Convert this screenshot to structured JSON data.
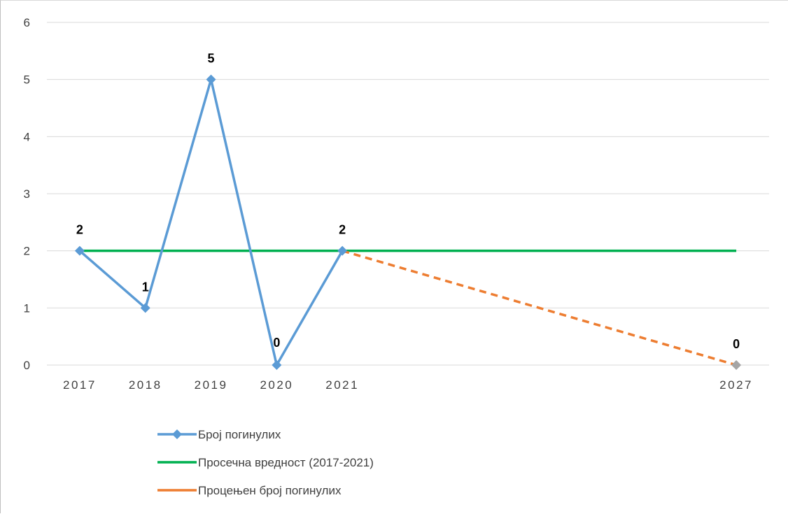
{
  "chart_data": {
    "type": "line",
    "title": "",
    "xlabel": "",
    "ylabel": "",
    "ylim": [
      0,
      6
    ],
    "y_ticks": [
      "0",
      "1",
      "2",
      "3",
      "4",
      "5",
      "6"
    ],
    "x_ticks": [
      "2017",
      "2018",
      "2019",
      "2020",
      "2021",
      "2027"
    ],
    "grid": "horizontal",
    "legend_position": "bottom",
    "series": [
      {
        "name": "Број погинулих",
        "color": "#5b9bd5",
        "style": "solid",
        "marker": "diamond",
        "x": [
          "2017",
          "2018",
          "2019",
          "2020",
          "2021"
        ],
        "values": [
          2,
          1,
          5,
          0,
          2
        ],
        "labels": [
          "2",
          "1",
          "5",
          "0",
          "2"
        ]
      },
      {
        "name": "Просечна вредност (2017-2021)",
        "color": "#00b050",
        "style": "solid",
        "marker": "none",
        "x": [
          "2017",
          "2027"
        ],
        "values": [
          2,
          2
        ]
      },
      {
        "name": "Процењен број погинулих",
        "color": "#ed7d31",
        "style": "dashed",
        "marker": "none",
        "x": [
          "2021",
          "2027"
        ],
        "values": [
          2,
          0
        ],
        "end_marker": {
          "x": "2027",
          "value": 0,
          "color": "#a5a5a5",
          "label": "0"
        }
      }
    ]
  }
}
